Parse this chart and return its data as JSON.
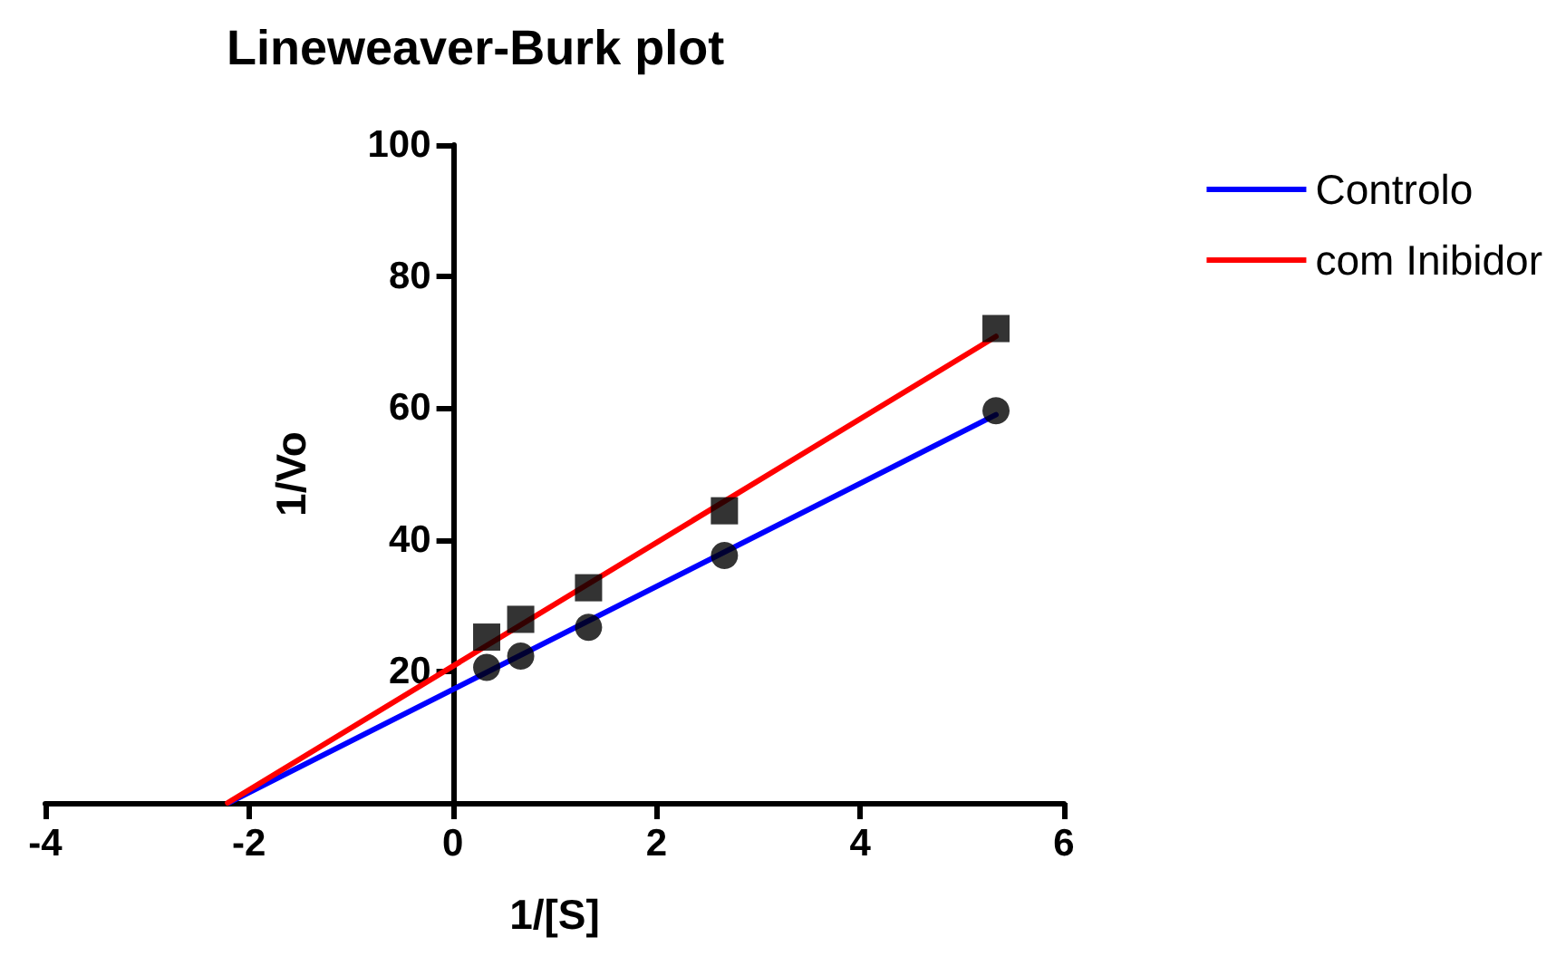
{
  "chart_data": {
    "type": "scatter",
    "title": "Lineweaver-Burk plot",
    "xlabel": "1/[S]",
    "ylabel": "1/Vo",
    "xlim": [
      -4,
      6
    ],
    "xticks": [
      -4,
      -2,
      0,
      2,
      4,
      6
    ],
    "ylim": [
      0,
      100
    ],
    "yticks": [
      20,
      40,
      60,
      80,
      100
    ],
    "legend": "top right",
    "series": [
      {
        "type": "line",
        "name": "Controlo",
        "color": "#0000ff",
        "x": [
          -2.2,
          5.333
        ],
        "values": [
          0,
          59.0
        ],
        "marker": "none"
      },
      {
        "type": "line",
        "name": "com Inibidor",
        "color": "#ff0000",
        "x": [
          -2.21,
          5.333
        ],
        "values": [
          0,
          70.9
        ],
        "marker": "none"
      },
      {
        "color": "#000000",
        "marker": "circle",
        "x": [
          0.333,
          0.667,
          1.333,
          2.667,
          5.333
        ],
        "values": [
          20.6,
          22.3,
          26.7,
          37.6,
          59.6
        ]
      },
      {
        "color": "#000000",
        "marker": "square",
        "x": [
          0.333,
          0.667,
          1.333,
          2.667,
          5.333
        ],
        "values": [
          25.2,
          27.9,
          32.7,
          44.4,
          72.1
        ]
      }
    ]
  }
}
